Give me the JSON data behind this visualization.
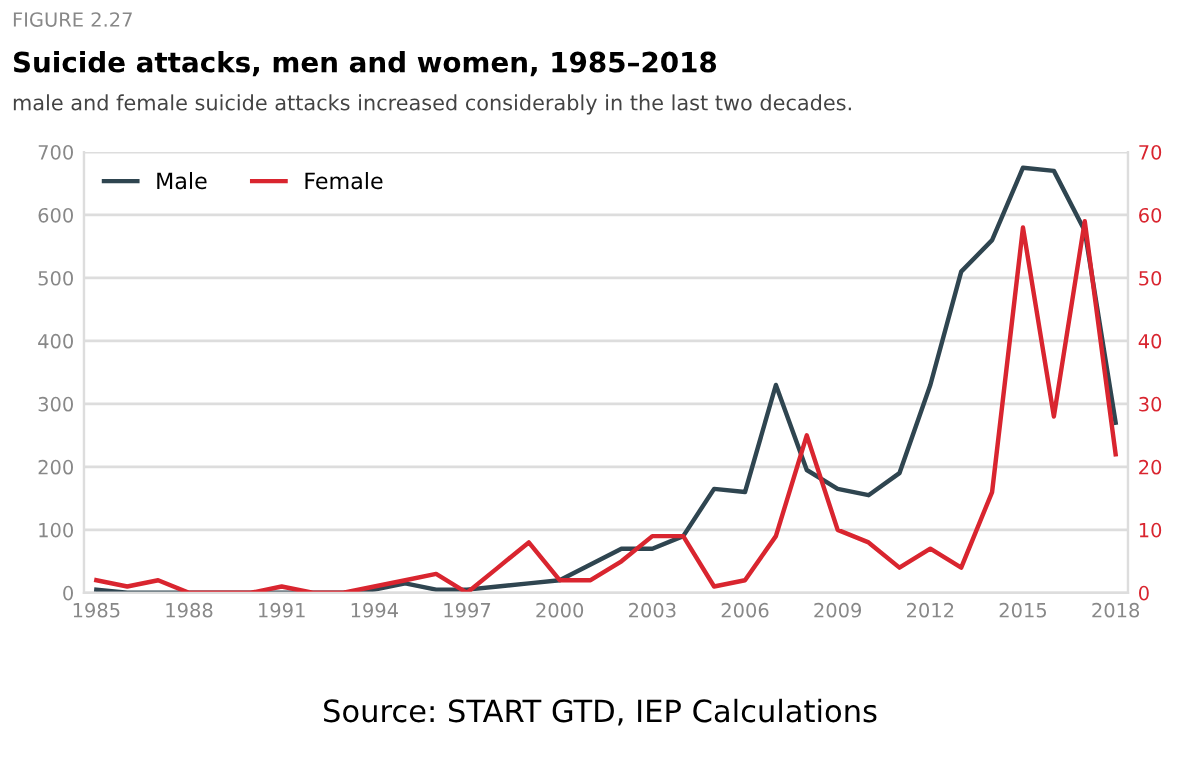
{
  "chart_data": {
    "type": "line",
    "title": "Suicide attacks, men and women, 1985–2018",
    "subtitle": "male and female suicide attacks increased considerably in the last two decades.",
    "annotations": [
      "FIGURE 2.27",
      "Source: START GTD, IEP Calculations"
    ],
    "x": [
      1985,
      1986,
      1987,
      1988,
      1989,
      1990,
      1991,
      1992,
      1993,
      1994,
      1995,
      1996,
      1997,
      1998,
      1999,
      2000,
      2001,
      2002,
      2003,
      2004,
      2005,
      2006,
      2007,
      2008,
      2009,
      2010,
      2011,
      2012,
      2013,
      2014,
      2015,
      2016,
      2017,
      2018
    ],
    "series": [
      {
        "name": "Male",
        "color": "#2f4550",
        "values": [
          5,
          0,
          0,
          0,
          0,
          0,
          0,
          0,
          0,
          5,
          15,
          5,
          5,
          10,
          15,
          20,
          45,
          70,
          70,
          90,
          165,
          160,
          330,
          195,
          165,
          155,
          190,
          330,
          510,
          560,
          675,
          670,
          575,
          270
        ]
      },
      {
        "name": "Female",
        "color": "#d9252f",
        "axis": "y2",
        "values": [
          2,
          1,
          2,
          0,
          0,
          0,
          1,
          0,
          0,
          1,
          2,
          3,
          0,
          4,
          8,
          2,
          2,
          5,
          9,
          9,
          1,
          2,
          9,
          25,
          10,
          8,
          4,
          7,
          4,
          16,
          58,
          28,
          59,
          22
        ]
      }
    ],
    "xlim": [
      1984.6,
      2018.4
    ],
    "xticks": [
      1985,
      1988,
      1991,
      1994,
      1997,
      2000,
      2003,
      2006,
      2009,
      2012,
      2015,
      2018
    ],
    "ylim": [
      0,
      700
    ],
    "yticks": [
      0,
      100,
      200,
      300,
      400,
      500,
      600,
      700
    ],
    "y2lim": [
      0,
      70
    ],
    "y2ticks": [
      0,
      10,
      20,
      30,
      40,
      50,
      60,
      70
    ],
    "grid": "y",
    "legend": "top left",
    "line_style": "solid",
    "marker": "none"
  }
}
